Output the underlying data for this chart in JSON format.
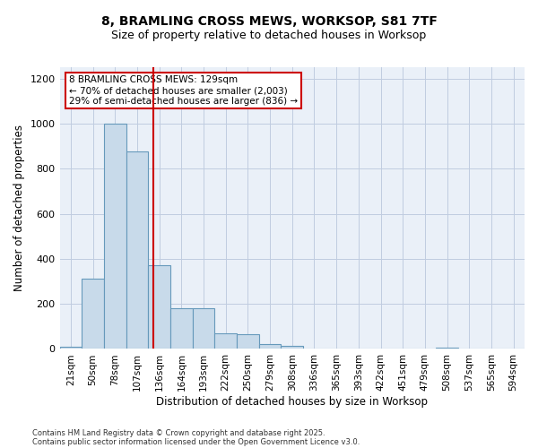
{
  "title_line1": "8, BRAMLING CROSS MEWS, WORKSOP, S81 7TF",
  "title_line2": "Size of property relative to detached houses in Worksop",
  "xlabel": "Distribution of detached houses by size in Worksop",
  "ylabel": "Number of detached properties",
  "categories": [
    "21sqm",
    "50sqm",
    "78sqm",
    "107sqm",
    "136sqm",
    "164sqm",
    "193sqm",
    "222sqm",
    "250sqm",
    "279sqm",
    "308sqm",
    "336sqm",
    "365sqm",
    "393sqm",
    "422sqm",
    "451sqm",
    "479sqm",
    "508sqm",
    "537sqm",
    "565sqm",
    "594sqm"
  ],
  "values": [
    10,
    310,
    1000,
    875,
    370,
    180,
    180,
    70,
    65,
    20,
    12,
    3,
    2,
    1,
    1,
    1,
    1,
    5,
    1,
    1,
    1
  ],
  "bar_color": "#c8daea",
  "bar_edge_color": "#6699bb",
  "vline_color": "#cc0000",
  "vline_x": 3.75,
  "annotation_text": "8 BRAMLING CROSS MEWS: 129sqm\n← 70% of detached houses are smaller (2,003)\n29% of semi-detached houses are larger (836) →",
  "annotation_box_edge_color": "#cc0000",
  "ylim": [
    0,
    1250
  ],
  "yticks": [
    0,
    200,
    400,
    600,
    800,
    1000,
    1200
  ],
  "footnote1": "Contains HM Land Registry data © Crown copyright and database right 2025.",
  "footnote2": "Contains public sector information licensed under the Open Government Licence v3.0.",
  "background_color": "#ffffff",
  "grid_color": "#c0cce0",
  "title1_fontsize": 10,
  "title2_fontsize": 9,
  "axis_label_fontsize": 8,
  "tick_fontsize": 7.5,
  "annot_fontsize": 7.5,
  "footnote_fontsize": 6
}
